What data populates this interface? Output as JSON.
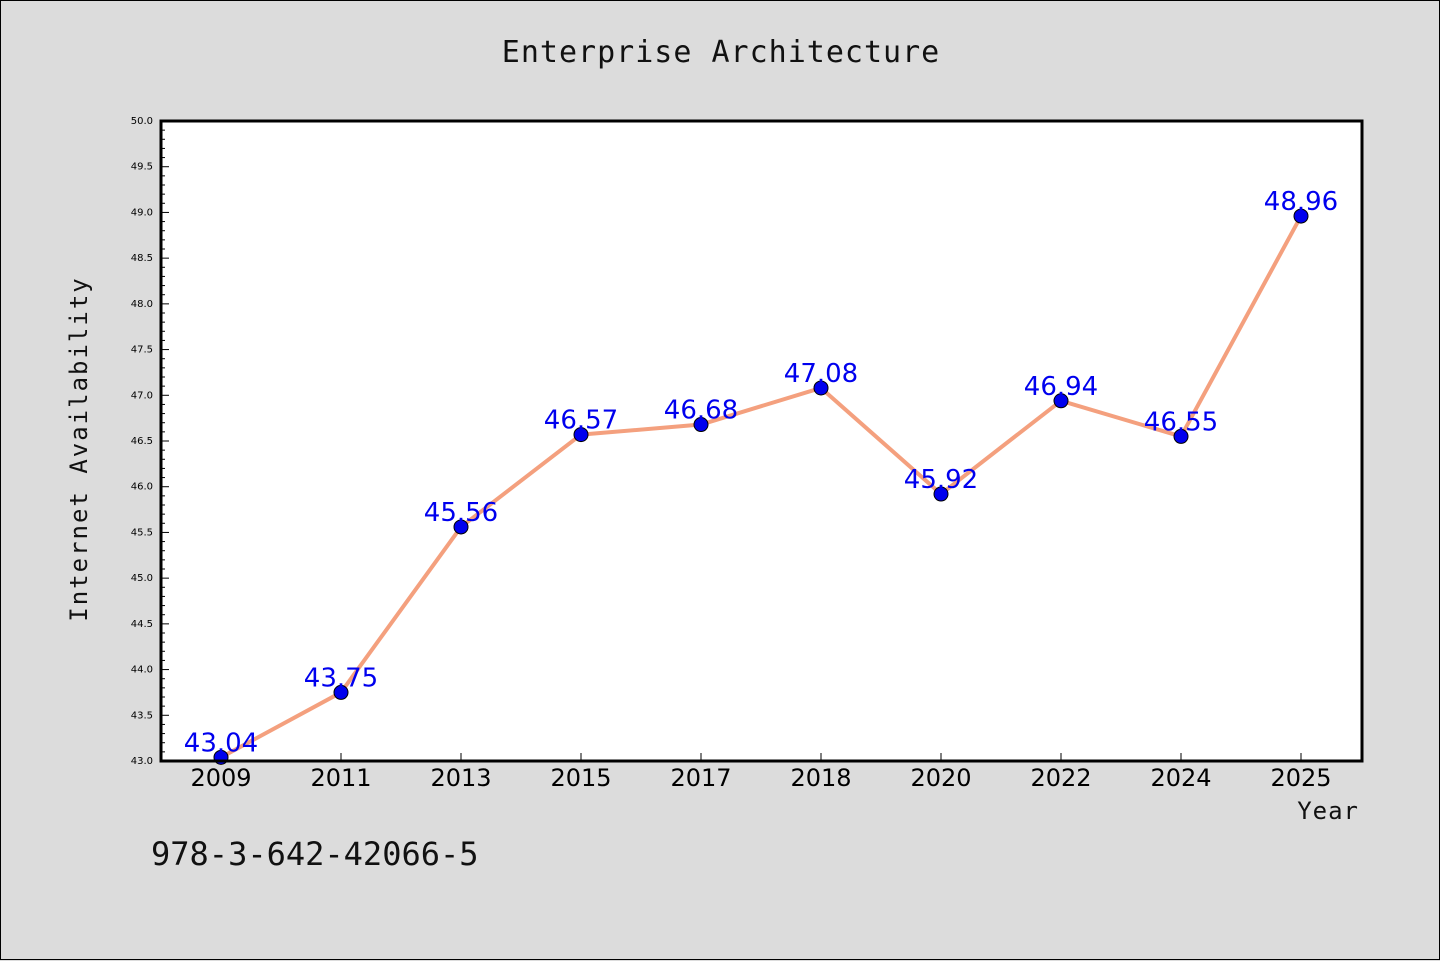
{
  "chart_data": {
    "type": "line",
    "title": "Enterprise Architecture",
    "xlabel": "Year",
    "ylabel": "Internet Availability",
    "categories": [
      "2009",
      "2011",
      "2013",
      "2015",
      "2017",
      "2018",
      "2020",
      "2022",
      "2024",
      "2025"
    ],
    "series": [
      {
        "values": [
          43.04,
          43.75,
          45.56,
          46.57,
          46.68,
          47.08,
          45.92,
          46.94,
          46.55,
          48.96
        ]
      }
    ],
    "ylim": [
      43.0,
      50.0
    ],
    "y_ticks": [
      "43.0",
      "43.5",
      "44.0",
      "44.5",
      "45.0",
      "45.5",
      "46.0",
      "46.5",
      "47.0",
      "47.5",
      "48.0",
      "48.5",
      "49.0",
      "49.5",
      "50.0"
    ],
    "data_labels": [
      "43.04",
      "43.75",
      "45.56",
      "46.57",
      "46.68",
      "47.08",
      "45.92",
      "46.94",
      "46.55",
      "48.96"
    ],
    "grid": false,
    "line_color": "#f4a07e",
    "marker_color": "#0000ee",
    "label_color": "#0000ee"
  },
  "annotation": "978-3-642-42066-5"
}
